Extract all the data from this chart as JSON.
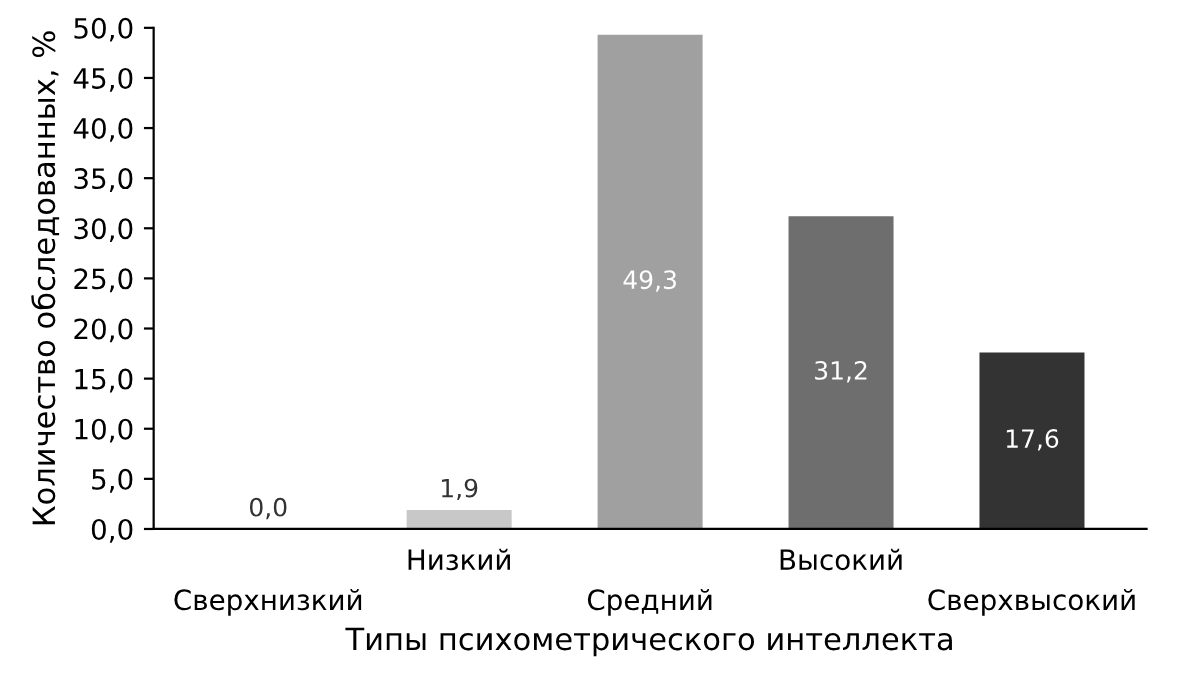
{
  "chart_data": {
    "type": "bar",
    "xlabel": "Типы психометрического интеллекта",
    "ylabel": "Количество обследованных, %",
    "categories": [
      "Сверхнизкий",
      "Низкий",
      "Средний",
      "Высокий",
      "Сверхвысокий"
    ],
    "values": [
      0.0,
      1.9,
      49.3,
      31.2,
      17.6
    ],
    "value_labels": [
      "0,0",
      "1,9",
      "49,3",
      "31,2",
      "17,6"
    ],
    "colors": [
      "#d0d0d0",
      "#c8c8c8",
      "#a0a0a0",
      "#6e6e6e",
      "#333333"
    ],
    "ylim": [
      0,
      50
    ],
    "yticks": [
      {
        "value": 0,
        "label": "0,0"
      },
      {
        "value": 5,
        "label": "5,0"
      },
      {
        "value": 10,
        "label": "10,0"
      },
      {
        "value": 15,
        "label": "15,0"
      },
      {
        "value": 20,
        "label": "20,0"
      },
      {
        "value": 25,
        "label": "25,0"
      },
      {
        "value": 30,
        "label": "30,0"
      },
      {
        "value": 35,
        "label": "35,0"
      },
      {
        "value": 40,
        "label": "40,0"
      },
      {
        "value": 45,
        "label": "45,0"
      },
      {
        "value": 50,
        "label": "50,0"
      }
    ],
    "grid": false,
    "legend": false
  }
}
